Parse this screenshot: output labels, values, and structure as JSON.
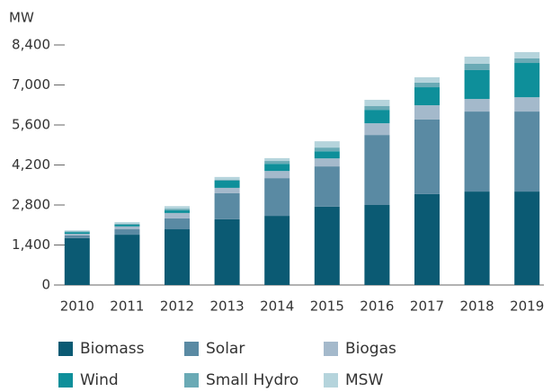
{
  "chart_data": {
    "type": "stacked_bar",
    "y_label": "MW",
    "categories": [
      "2010",
      "2011",
      "2012",
      "2013",
      "2014",
      "2015",
      "2016",
      "2017",
      "2018",
      "2019"
    ],
    "series": [
      {
        "name": "Biomass",
        "color": "#0b5a73",
        "values": [
          1640,
          1760,
          1950,
          2300,
          2420,
          2740,
          2800,
          3180,
          3270,
          3270
        ]
      },
      {
        "name": "Solar",
        "color": "#5a8aa3",
        "values": [
          90,
          190,
          380,
          910,
          1320,
          1410,
          2450,
          2610,
          2800,
          2800
        ]
      },
      {
        "name": "Biogas",
        "color": "#a4b9cb",
        "values": [
          60,
          100,
          190,
          190,
          250,
          280,
          410,
          500,
          440,
          500
        ]
      },
      {
        "name": "Wind",
        "color": "#0e8f9a",
        "values": [
          60,
          60,
          90,
          250,
          250,
          250,
          470,
          630,
          1010,
          1200
        ]
      },
      {
        "name": "Small Hydro",
        "color": "#6aaab5",
        "values": [
          30,
          30,
          60,
          30,
          100,
          130,
          130,
          160,
          220,
          160
        ]
      },
      {
        "name": "MSW",
        "color": "#b5d4dc",
        "values": [
          30,
          60,
          90,
          100,
          100,
          220,
          220,
          190,
          250,
          220
        ]
      }
    ],
    "ylim": [
      0,
      8400
    ],
    "yticks": [
      0,
      {
        "value": 1400,
        "label": "1,400"
      },
      {
        "value": 2800,
        "label": "2,800"
      },
      {
        "value": 4200,
        "label": "4,200"
      },
      {
        "value": 5600,
        "label": "5,600"
      },
      {
        "value": 7000,
        "label": "7,000"
      },
      {
        "value": 8400,
        "label": "8,400"
      }
    ]
  }
}
